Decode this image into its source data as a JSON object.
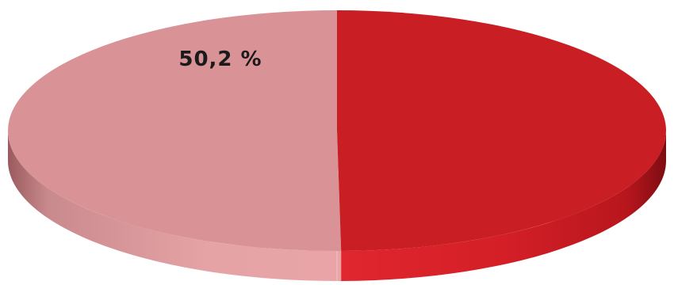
{
  "chart_data": {
    "type": "pie",
    "style": "3d",
    "title": "",
    "slices": [
      {
        "value": 50.2,
        "label": "50,2 %",
        "color": "#d99397"
      },
      {
        "value": 49.8,
        "label": "",
        "color": "#c81e24"
      }
    ]
  }
}
